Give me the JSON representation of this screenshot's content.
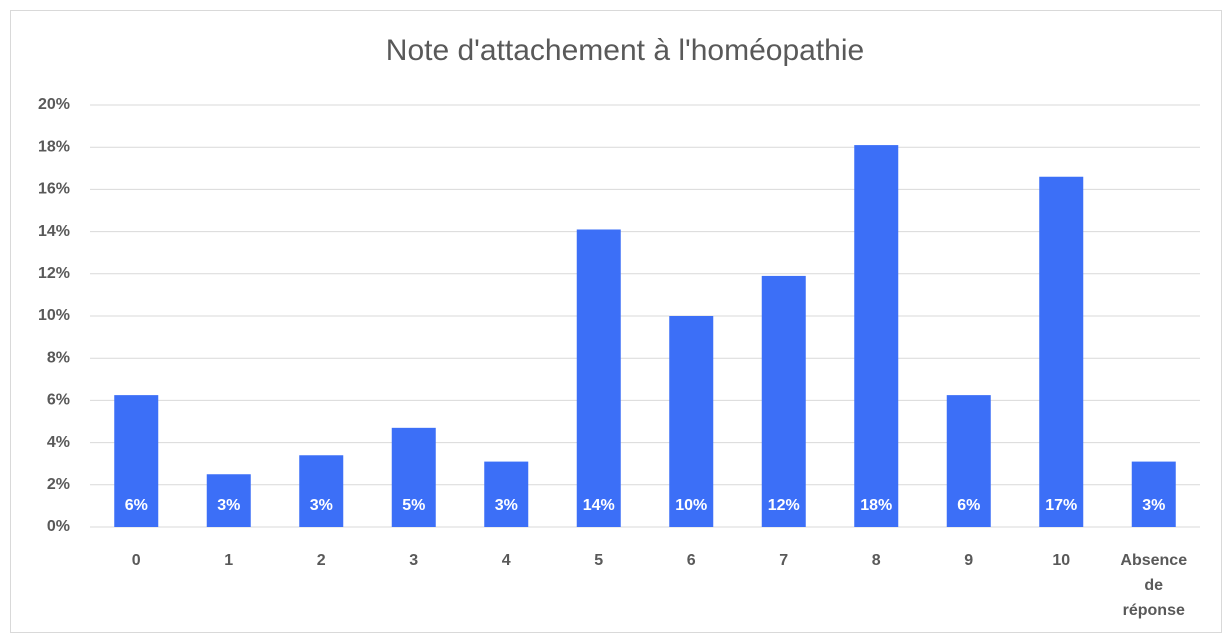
{
  "chart_data": {
    "type": "bar",
    "title": "Note d'attachement à l'homéopathie",
    "categories": [
      "0",
      "1",
      "2",
      "3",
      "4",
      "5",
      "6",
      "7",
      "8",
      "9",
      "10",
      "Absence de réponse"
    ],
    "values": [
      6.25,
      2.5,
      3.4,
      4.7,
      3.1,
      14.1,
      10.0,
      11.9,
      18.1,
      6.25,
      16.6,
      3.1
    ],
    "value_labels": [
      "6%",
      "3%",
      "3%",
      "5%",
      "3%",
      "14%",
      "10%",
      "12%",
      "18%",
      "6%",
      "17%",
      "3%"
    ],
    "color": "#3c6ff7",
    "ylim": [
      0,
      20
    ],
    "yticks": [
      {
        "value": 0,
        "label": "0%"
      },
      {
        "value": 2,
        "label": "2%"
      },
      {
        "value": 4,
        "label": "4%"
      },
      {
        "value": 6,
        "label": "6%"
      },
      {
        "value": 8,
        "label": "8%"
      },
      {
        "value": 10,
        "label": "10%"
      },
      {
        "value": 12,
        "label": "12%"
      },
      {
        "value": 14,
        "label": "14%"
      },
      {
        "value": 16,
        "label": "16%"
      },
      {
        "value": 18,
        "label": "18%"
      },
      {
        "value": 20,
        "label": "20%"
      }
    ],
    "grid": true
  }
}
